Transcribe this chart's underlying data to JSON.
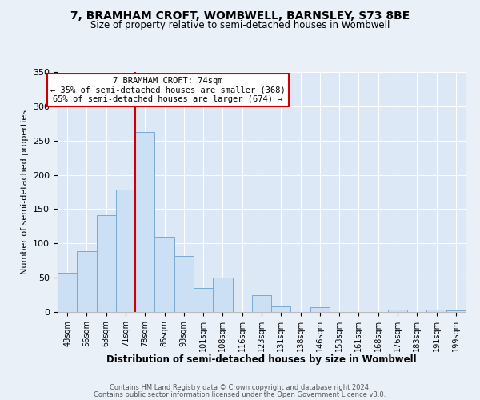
{
  "title": "7, BRAMHAM CROFT, WOMBWELL, BARNSLEY, S73 8BE",
  "subtitle": "Size of property relative to semi-detached houses in Wombwell",
  "xlabel": "Distribution of semi-detached houses by size in Wombwell",
  "ylabel": "Number of semi-detached properties",
  "categories": [
    "48sqm",
    "56sqm",
    "63sqm",
    "71sqm",
    "78sqm",
    "86sqm",
    "93sqm",
    "101sqm",
    "108sqm",
    "116sqm",
    "123sqm",
    "131sqm",
    "138sqm",
    "146sqm",
    "153sqm",
    "161sqm",
    "168sqm",
    "176sqm",
    "183sqm",
    "191sqm",
    "199sqm"
  ],
  "values": [
    57,
    89,
    141,
    178,
    263,
    110,
    82,
    35,
    50,
    0,
    24,
    8,
    0,
    7,
    0,
    0,
    0,
    4,
    0,
    3,
    2
  ],
  "bar_color": "#cce0f5",
  "bar_edge_color": "#7aaad0",
  "vline_color": "#cc0000",
  "vline_x_idx": 4,
  "annotation_title": "7 BRAMHAM CROFT: 74sqm",
  "annotation_line1": "← 35% of semi-detached houses are smaller (368)",
  "annotation_line2": "65% of semi-detached houses are larger (674) →",
  "annotation_box_color": "#ffffff",
  "annotation_box_edge": "#cc0000",
  "ylim": [
    0,
    350
  ],
  "yticks": [
    0,
    50,
    100,
    150,
    200,
    250,
    300,
    350
  ],
  "footer1": "Contains HM Land Registry data © Crown copyright and database right 2024.",
  "footer2": "Contains public sector information licensed under the Open Government Licence v3.0.",
  "bg_color": "#eaf0f8",
  "plot_bg_color": "#dce8f5"
}
